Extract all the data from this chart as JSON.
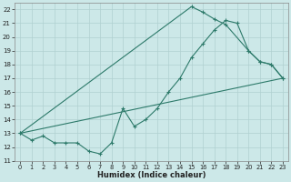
{
  "xlabel": "Humidex (Indice chaleur)",
  "bg_color": "#cce8e8",
  "grid_color": "#b0d0d0",
  "line_color": "#2d7a6a",
  "xlim": [
    -0.5,
    23.5
  ],
  "ylim": [
    11,
    22.5
  ],
  "yticks": [
    11,
    12,
    13,
    14,
    15,
    16,
    17,
    18,
    19,
    20,
    21,
    22
  ],
  "xticks": [
    0,
    1,
    2,
    3,
    4,
    5,
    6,
    7,
    8,
    9,
    10,
    11,
    12,
    13,
    14,
    15,
    16,
    17,
    18,
    19,
    20,
    21,
    22,
    23
  ],
  "line1_x": [
    0,
    1,
    2,
    3,
    4,
    5,
    6,
    7,
    8,
    9,
    10,
    11,
    12,
    13,
    14,
    15,
    16,
    17,
    18,
    19,
    20,
    21,
    22,
    23
  ],
  "line1_y": [
    13.0,
    12.5,
    12.8,
    12.3,
    12.3,
    12.3,
    11.7,
    11.5,
    12.3,
    14.8,
    13.5,
    14.0,
    14.8,
    16.0,
    17.0,
    18.5,
    19.5,
    20.5,
    21.2,
    21.0,
    19.0,
    18.2,
    18.0,
    17.0
  ],
  "line2_x": [
    0,
    15,
    16,
    17,
    18,
    20,
    21,
    22,
    23
  ],
  "line2_y": [
    13.0,
    22.2,
    21.8,
    21.3,
    20.9,
    19.0,
    18.2,
    18.0,
    17.0
  ],
  "line3_x": [
    0,
    23
  ],
  "line3_y": [
    13.0,
    17.0
  ]
}
